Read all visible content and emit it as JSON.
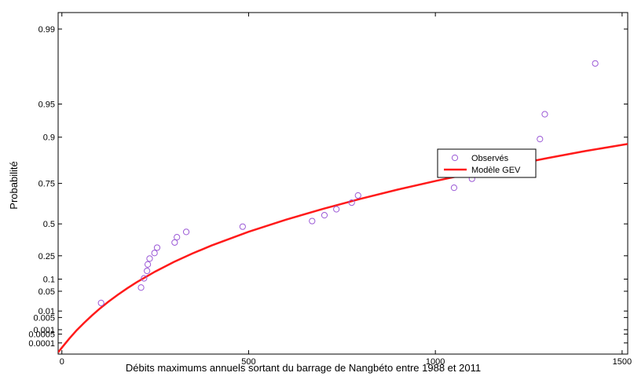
{
  "chart_data": {
    "type": "scatter",
    "title": "",
    "xlabel": "Débits maximums annuels sortant du barrage de Nangbéto entre 1988 et 2011",
    "ylabel": "Probabilité",
    "xlim": [
      -10,
      1515
    ],
    "y_scale": "gumbel probability",
    "ylim": [
      8e-06,
      0.993
    ],
    "x_ticks": [
      0,
      500,
      1000,
      1500
    ],
    "x_tick_labels": [
      "0",
      "500",
      "1000",
      "1500"
    ],
    "y_ticks": [
      0.0001,
      0.0005,
      0.001,
      0.005,
      0.01,
      0.05,
      0.1,
      0.25,
      0.5,
      0.75,
      0.9,
      0.95,
      0.99
    ],
    "y_tick_labels": [
      "0.0001",
      "0.0005",
      "0.001",
      "0.005",
      "0.01",
      "0.05",
      "0.1",
      "0.25",
      "0.5",
      "0.75",
      "0.9",
      "0.95",
      "0.99"
    ],
    "grid": false,
    "legend_position": "right",
    "series": [
      {
        "name": "Observés",
        "kind": "markers",
        "color": "#9b59d6",
        "points": [
          {
            "x": 105,
            "y": 0.021
          },
          {
            "x": 212,
            "y": 0.063
          },
          {
            "x": 220,
            "y": 0.104
          },
          {
            "x": 228,
            "y": 0.146
          },
          {
            "x": 230,
            "y": 0.188
          },
          {
            "x": 235,
            "y": 0.229
          },
          {
            "x": 248,
            "y": 0.271
          },
          {
            "x": 255,
            "y": 0.313
          },
          {
            "x": 302,
            "y": 0.354
          },
          {
            "x": 308,
            "y": 0.396
          },
          {
            "x": 333,
            "y": 0.438
          },
          {
            "x": 484,
            "y": 0.479
          },
          {
            "x": 670,
            "y": 0.521
          },
          {
            "x": 703,
            "y": 0.563
          },
          {
            "x": 735,
            "y": 0.604
          },
          {
            "x": 776,
            "y": 0.646
          },
          {
            "x": 793,
            "y": 0.688
          },
          {
            "x": 1050,
            "y": 0.729
          },
          {
            "x": 1098,
            "y": 0.771
          },
          {
            "x": 1187,
            "y": 0.813
          },
          {
            "x": 1210,
            "y": 0.854
          },
          {
            "x": 1280,
            "y": 0.896
          },
          {
            "x": 1293,
            "y": 0.938
          },
          {
            "x": 1428,
            "y": 0.979
          }
        ]
      },
      {
        "name": "Modèle GEV",
        "kind": "line",
        "color": "#ff1a1a",
        "points": [
          {
            "x": -10,
            "y": 1.25e-05
          },
          {
            "x": 0,
            "y": 3.71e-05
          },
          {
            "x": 20,
            "y": 0.000233
          },
          {
            "x": 40,
            "y": 0.00094
          },
          {
            "x": 60,
            "y": 0.00266
          },
          {
            "x": 80,
            "y": 0.00616
          },
          {
            "x": 100,
            "y": 0.0121
          },
          {
            "x": 125,
            "y": 0.0235
          },
          {
            "x": 150,
            "y": 0.0396
          },
          {
            "x": 175,
            "y": 0.0603
          },
          {
            "x": 200,
            "y": 0.0849
          },
          {
            "x": 250,
            "y": 0.142
          },
          {
            "x": 300,
            "y": 0.205
          },
          {
            "x": 350,
            "y": 0.268
          },
          {
            "x": 400,
            "y": 0.329
          },
          {
            "x": 500,
            "y": 0.439
          },
          {
            "x": 600,
            "y": 0.531
          },
          {
            "x": 700,
            "y": 0.607
          },
          {
            "x": 800,
            "y": 0.669
          },
          {
            "x": 900,
            "y": 0.72
          },
          {
            "x": 1000,
            "y": 0.761
          },
          {
            "x": 1100,
            "y": 0.795
          },
          {
            "x": 1200,
            "y": 0.823
          },
          {
            "x": 1300,
            "y": 0.847
          },
          {
            "x": 1400,
            "y": 0.867
          },
          {
            "x": 1515,
            "y": 0.885
          }
        ]
      }
    ]
  }
}
